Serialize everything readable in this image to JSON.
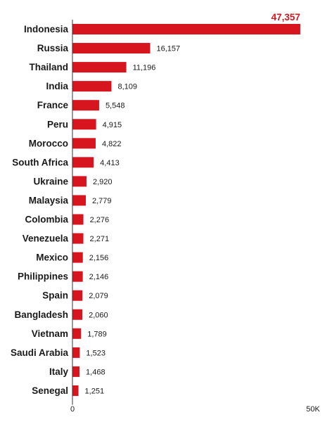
{
  "chart_data": {
    "type": "bar",
    "orientation": "horizontal",
    "categories": [
      "Indonesia",
      "Russia",
      "Thailand",
      "India",
      "France",
      "Peru",
      "Morocco",
      "South Africa",
      "Ukraine",
      "Malaysia",
      "Colombia",
      "Venezuela",
      "Mexico",
      "Philippines",
      "Spain",
      "Bangladesh",
      "Vietnam",
      "Saudi Arabia",
      "Italy",
      "Senegal"
    ],
    "values": [
      47357,
      16157,
      11196,
      8109,
      5548,
      4915,
      4822,
      4413,
      2920,
      2779,
      2276,
      2271,
      2156,
      2146,
      2079,
      2060,
      1789,
      1523,
      1468,
      1251
    ],
    "value_labels": [
      "47,357",
      "16,157",
      "11,196",
      "8,109",
      "5,548",
      "4,915",
      "4,822",
      "4,413",
      "2,920",
      "2,779",
      "2,276",
      "2,271",
      "2,156",
      "2,146",
      "2,079",
      "2,060",
      "1,789",
      "1,523",
      "1,468",
      "1,251"
    ],
    "xlim": [
      0,
      50000
    ],
    "x_ticks": [
      0,
      50000
    ],
    "x_tick_labels": [
      "0",
      "50K"
    ],
    "grid": false,
    "colors": {
      "bar": "#d7151f",
      "highlight_label": "#d7151f",
      "text": "#1a1a1a",
      "axis": "#333333"
    }
  }
}
